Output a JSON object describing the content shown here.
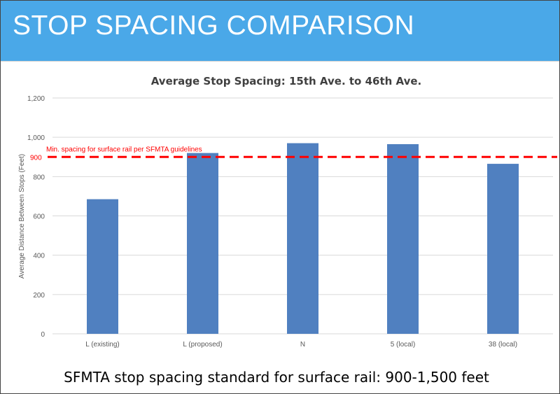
{
  "slide": {
    "title": "STOP SPACING COMPARISON",
    "caption": "SFMTA stop spacing standard for surface rail: 900-1,500 feet"
  },
  "colors": {
    "header_bg": "#4aa8e8",
    "bar": "#5080c0",
    "reference_line": "#ff0000",
    "grid": "#d9d9d9"
  },
  "chart_data": {
    "type": "bar",
    "title": "Average Stop Spacing: 15th Ave. to 46th Ave.",
    "xlabel": "",
    "ylabel": "Average Distance Between Stops (Feet)",
    "categories": [
      "L (existing)",
      "L (proposed)",
      "N",
      "5 (local)",
      "38 (local)"
    ],
    "values": [
      685,
      920,
      970,
      965,
      865
    ],
    "ylim": [
      0,
      1200
    ],
    "yticks": [
      0,
      200,
      400,
      600,
      800,
      1000,
      1200
    ],
    "ytick_labels": [
      "0",
      "200",
      "400",
      "600",
      "800",
      "1,000",
      "1,200"
    ],
    "grid": true,
    "reference_line": {
      "value": 900,
      "value_label": "900",
      "label": "Min. spacing for surface rail per SFMTA guidelines",
      "style": "dashed"
    }
  }
}
